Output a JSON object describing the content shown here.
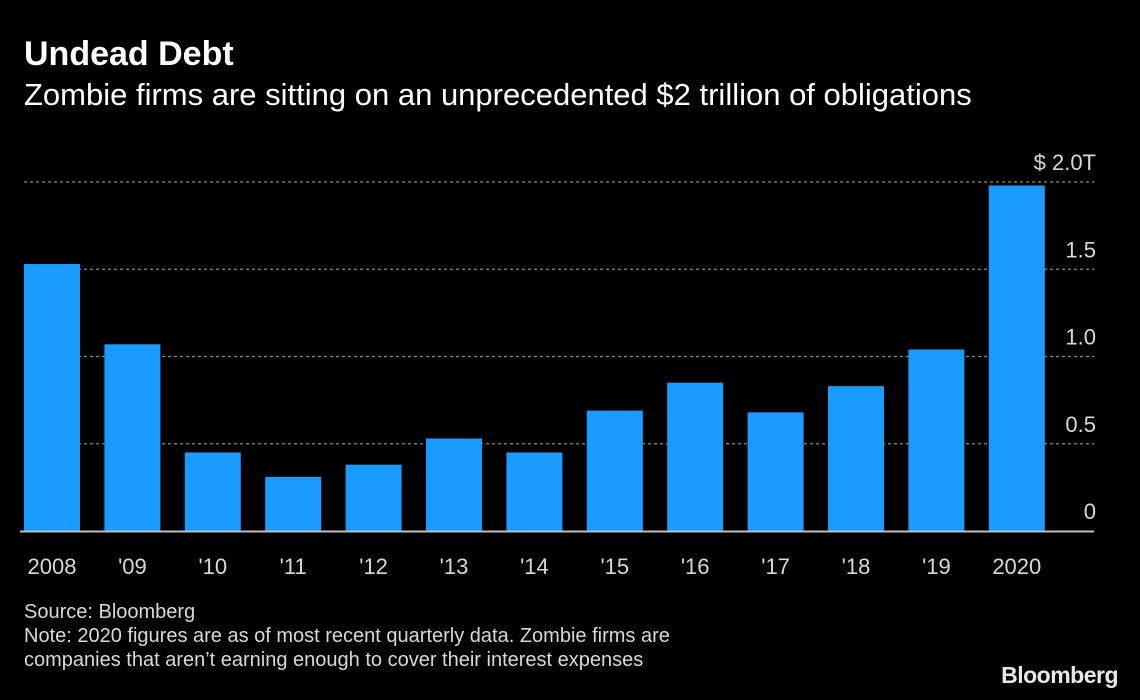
{
  "title": "Undead Debt",
  "subtitle": "Zombie firms are sitting on an unprecedented $2 trillion of obligations",
  "footer": {
    "source": "Source: Bloomberg",
    "note_line1": "Note: 2020 figures are as of most recent quarterly data. Zombie firms are",
    "note_line2": "companies that aren’t earning enough to cover their interest expenses"
  },
  "logo_text": "Bloomberg",
  "colors": {
    "bar": "#1a9bff",
    "background": "#000000",
    "grid": "#8a8a8a",
    "text": "#ffffff"
  },
  "chart_data": {
    "type": "bar",
    "categories": [
      "2008",
      "'09",
      "'10",
      "'11",
      "'12",
      "'13",
      "'14",
      "'15",
      "'16",
      "'17",
      "'18",
      "'19",
      "2020"
    ],
    "values": [
      1.53,
      1.07,
      0.45,
      0.31,
      0.38,
      0.53,
      0.45,
      0.69,
      0.85,
      0.68,
      0.83,
      1.04,
      1.98
    ],
    "y_ticks": [
      0,
      0.5,
      1.0,
      1.5,
      2.0
    ],
    "y_tick_labels": [
      "0",
      "0.5",
      "1.0",
      "1.5",
      "$ 2.0T"
    ],
    "ylim": [
      0,
      2.0
    ],
    "xlabel": "",
    "ylabel": "",
    "grid": true,
    "y_axis_position": "right"
  }
}
